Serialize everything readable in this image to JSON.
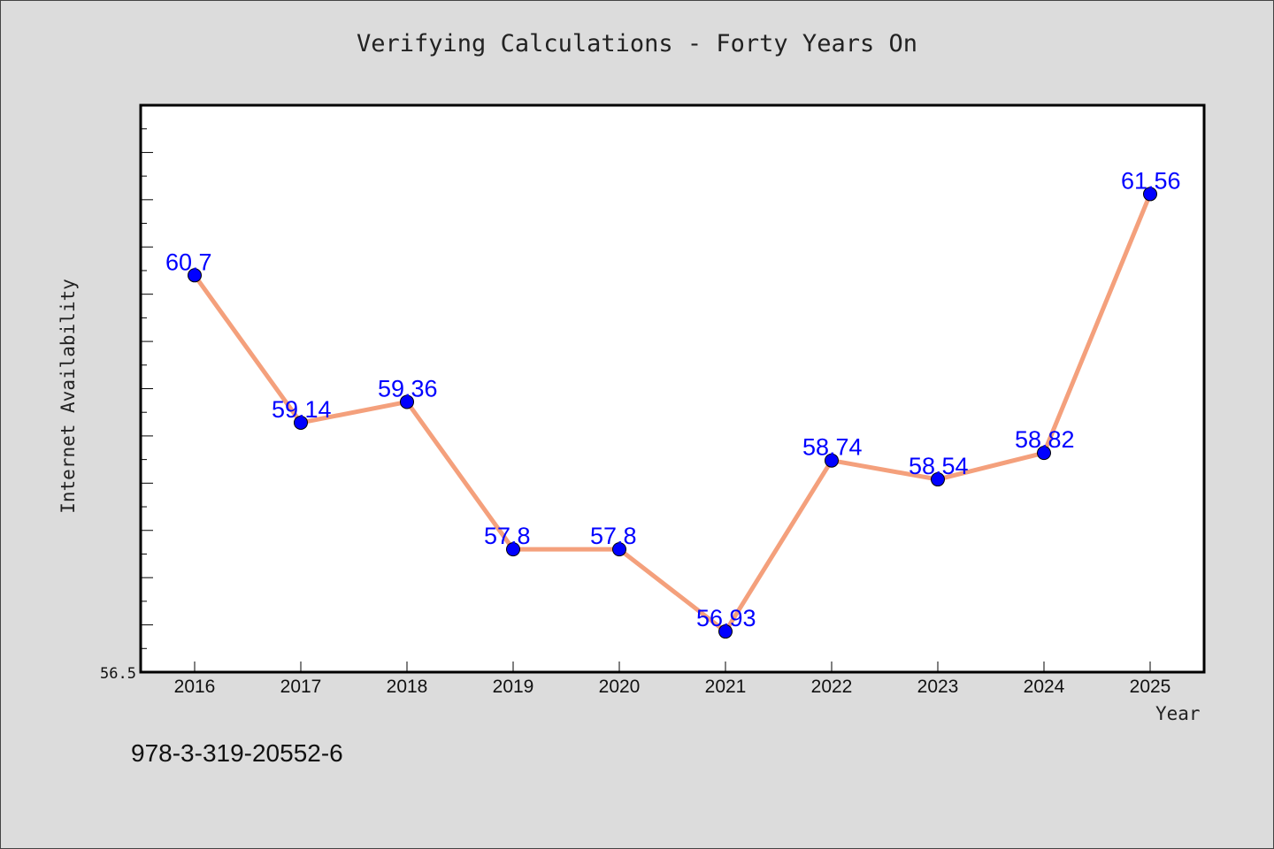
{
  "footer_text": "978-3-319-20552-6",
  "colors": {
    "background": "#dcdcdc",
    "plot_background": "#ffffff",
    "line": "#f4a07c",
    "marker": "#0000ff",
    "data_label": "#0000ff"
  },
  "chart_data": {
    "type": "line",
    "title": "Verifying Calculations - Forty Years On",
    "xlabel": "Year",
    "ylabel": "Internet Availability",
    "x": [
      "2016",
      "2017",
      "2018",
      "2019",
      "2020",
      "2021",
      "2022",
      "2023",
      "2024",
      "2025"
    ],
    "series": [
      {
        "values": [
          60.7,
          59.14,
          59.36,
          57.8,
          57.8,
          56.93,
          58.74,
          58.54,
          58.82,
          61.56
        ],
        "data_labels": [
          "60.7",
          "59.14",
          "59.36",
          "57.8",
          "57.8",
          "56.93",
          "58.74",
          "58.54",
          "58.82",
          "61.56"
        ]
      }
    ],
    "ylim": [
      56.5,
      62.5
    ],
    "y_tick_labels": [
      "56.5"
    ],
    "grid": false,
    "legend": "none"
  }
}
